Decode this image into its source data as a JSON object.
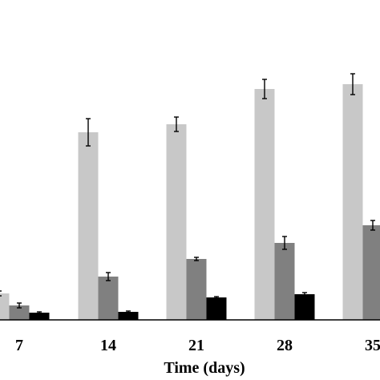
{
  "chart_data": {
    "type": "bar",
    "xlabel": "Time (days)",
    "ylabel": "",
    "title": "",
    "categories": [
      "7",
      "14",
      "21",
      "28",
      "35"
    ],
    "series": [
      {
        "values": [
          0.33,
          2.34,
          2.44,
          2.88,
          2.94
        ],
        "errors": [
          0.03,
          0.17,
          0.09,
          0.12,
          0.13
        ],
        "color": "#c8c8c8"
      },
      {
        "values": [
          0.18,
          0.54,
          0.76,
          0.96,
          1.18
        ],
        "errors": [
          0.03,
          0.05,
          0.02,
          0.08,
          0.06
        ],
        "color": "#808080"
      },
      {
        "values": [
          0.09,
          0.1,
          0.28,
          0.32,
          null
        ],
        "errors": [
          0.01,
          0.01,
          0.01,
          0.02,
          0
        ],
        "color": "#000000"
      }
    ],
    "ylim": [
      0,
      3.5
    ],
    "grid": false,
    "legend": "none"
  }
}
